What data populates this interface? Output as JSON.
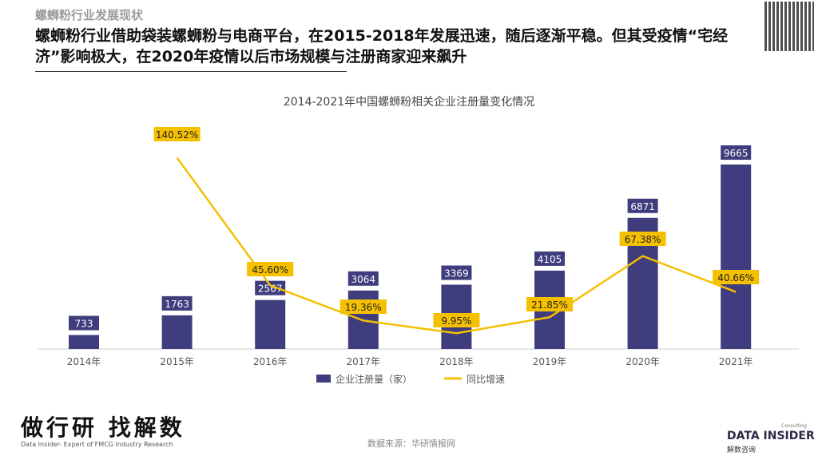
{
  "header": {
    "kicker": "螺蛳粉行业发展现状",
    "headline": "螺蛳粉行业借助袋装螺蛳粉与电商平台，在2015-2018年发展迅速，随后逐渐平稳。但其受疫情“宅经济”影响极大，在2020年疫情以后市场规模与注册商家迎来飙升"
  },
  "footer": {
    "source": "数据来源：华研情报网",
    "brand": "做行研 找解数",
    "brand_sub": "Data Insider- Expert of FMCG Industry Research",
    "logo": "DATA INSIDER",
    "logo_cn": "解数咨询",
    "logo_small": "Consulting"
  },
  "colors": {
    "bar": "#3f3d7d",
    "line": "#f5c000"
  },
  "chart_data": {
    "type": "bar+line",
    "title": "2014-2021年中国螺蛳粉相关企业注册量变化情况",
    "categories": [
      "2014年",
      "2015年",
      "2016年",
      "2017年",
      "2018年",
      "2019年",
      "2020年",
      "2021年"
    ],
    "series": [
      {
        "name": "企业注册量（家）",
        "type": "bar",
        "values": [
          733,
          1763,
          2567,
          3064,
          3369,
          4105,
          6871,
          9665
        ],
        "labels": [
          "733",
          "1763",
          "2567",
          "3064",
          "3369",
          "4105",
          "6871",
          "9665"
        ]
      },
      {
        "name": "同比增速",
        "type": "line",
        "values": [
          null,
          140.52,
          45.6,
          19.36,
          9.95,
          21.85,
          67.38,
          40.66
        ],
        "labels": [
          "",
          "140.52%",
          "45.60%",
          "19.36%",
          "9.95%",
          "21.85%",
          "67.38%",
          "40.66%"
        ]
      }
    ],
    "legend": "bottom",
    "grid": false
  }
}
